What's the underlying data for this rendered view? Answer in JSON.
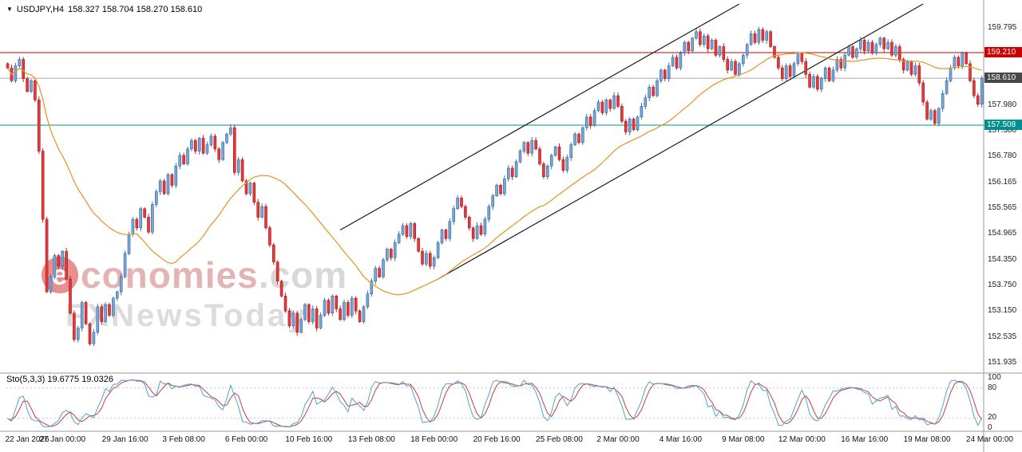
{
  "header": {
    "dropdown_glyph": "▼",
    "symbol_timeframe": "USDJPY,H4",
    "ohlc_values": "158.327 158.704 158.270 158.610"
  },
  "watermark": {
    "logo_letter": "e",
    "brand_rest": "conomies",
    "tld": ".com",
    "tagline": "FXNewsToday"
  },
  "chart_data": {
    "type": "candlestick",
    "symbol": "USDJPY",
    "timeframe": "H4",
    "ohlc_readout": {
      "open": "158.327",
      "high": "158.704",
      "low": "158.270",
      "close": "158.610"
    },
    "ylim": [
      151.75,
      160.35
    ],
    "grid": false,
    "up_color": "#2f6399",
    "up_fill": "#7aa6d8",
    "down_color": "#b31217",
    "down_fill": "#e03c3c",
    "first_open": 158.95,
    "closes": [
      158.85,
      158.55,
      158.9,
      159.05,
      158.6,
      158.3,
      158.55,
      158.1,
      156.9,
      155.3,
      153.6,
      153.95,
      154.45,
      154.2,
      154.55,
      153.9,
      153.1,
      152.48,
      152.75,
      153.35,
      152.85,
      152.38,
      152.65,
      153.25,
      152.9,
      153.3,
      153.05,
      153.45,
      153.6,
      153.95,
      154.5,
      154.95,
      155.3,
      155.1,
      155.55,
      155.35,
      155.0,
      155.65,
      155.95,
      156.2,
      155.9,
      156.35,
      156.1,
      156.55,
      156.8,
      156.6,
      156.95,
      157.15,
      156.9,
      157.2,
      156.85,
      157.05,
      157.25,
      156.95,
      156.7,
      157.1,
      157.3,
      157.45,
      156.4,
      156.7,
      156.2,
      155.9,
      156.15,
      155.7,
      155.35,
      155.6,
      155.1,
      154.7,
      154.3,
      153.85,
      153.5,
      153.15,
      152.8,
      153.1,
      152.65,
      152.95,
      153.3,
      152.9,
      153.2,
      152.75,
      153.05,
      153.4,
      153.1,
      153.5,
      153.2,
      152.95,
      153.35,
      153.05,
      153.45,
      153.15,
      152.9,
      153.25,
      153.55,
      153.85,
      154.15,
      153.95,
      154.35,
      154.6,
      154.4,
      154.75,
      154.95,
      155.15,
      154.9,
      155.2,
      154.85,
      154.55,
      154.25,
      154.5,
      154.2,
      154.4,
      154.75,
      155.05,
      154.85,
      155.25,
      155.55,
      155.8,
      155.6,
      155.35,
      155.1,
      154.85,
      155.15,
      154.95,
      155.3,
      155.6,
      155.85,
      156.1,
      155.9,
      156.25,
      156.5,
      156.3,
      156.65,
      156.9,
      157.1,
      156.85,
      157.15,
      156.95,
      156.6,
      156.3,
      156.55,
      156.8,
      157.0,
      156.7,
      156.45,
      156.75,
      157.05,
      157.3,
      157.1,
      157.45,
      157.7,
      157.5,
      157.85,
      158.05,
      157.8,
      158.1,
      157.9,
      158.2,
      157.95,
      157.6,
      157.35,
      157.65,
      157.4,
      157.7,
      157.95,
      158.15,
      158.4,
      158.2,
      158.55,
      158.8,
      158.6,
      158.9,
      159.1,
      158.85,
      159.2,
      159.45,
      159.25,
      159.55,
      159.7,
      159.4,
      159.6,
      159.3,
      159.5,
      159.15,
      159.35,
      159.05,
      158.8,
      159.0,
      158.7,
      158.95,
      159.15,
      159.4,
      159.65,
      159.45,
      159.75,
      159.5,
      159.7,
      159.35,
      159.1,
      158.85,
      158.6,
      158.9,
      158.65,
      158.95,
      159.2,
      159.0,
      158.7,
      158.4,
      158.65,
      158.35,
      158.6,
      158.85,
      158.55,
      158.8,
      159.05,
      158.85,
      159.15,
      159.35,
      159.1,
      159.3,
      159.5,
      159.25,
      159.45,
      159.2,
      159.4,
      159.55,
      159.3,
      159.45,
      159.15,
      159.35,
      159.05,
      158.8,
      159.0,
      158.7,
      158.9,
      158.5,
      158.05,
      157.65,
      157.85,
      157.55,
      157.9,
      158.25,
      158.55,
      158.85,
      159.1,
      158.9,
      159.2,
      158.95,
      158.55,
      158.2,
      158.0,
      158.61
    ],
    "moving_average": {
      "type": "SMA",
      "period": 34,
      "color": "#e39b2d"
    },
    "horizontal_lines": [
      {
        "price": 159.21,
        "color": "#cc0000",
        "label": "159.210",
        "label_bg": "#cc0000",
        "role": "resistance"
      },
      {
        "price": 158.61,
        "color": "#aaaaaa",
        "label": "158.610",
        "label_bg": "#474747",
        "role": "current-price"
      },
      {
        "price": 157.508,
        "color": "#008f8f",
        "label": "157.508",
        "label_bg": "#009090",
        "role": "support"
      }
    ],
    "trend_channel": [
      {
        "from": {
          "i": 85,
          "price": 155.05
        },
        "to": {
          "i": 187,
          "price": 160.35
        }
      },
      {
        "from": {
          "i": 110,
          "price": 153.9
        },
        "to": {
          "i": 234,
          "price": 160.35
        }
      }
    ],
    "price_axis_ticks": [
      {
        "label": "159.795",
        "price": 159.795
      },
      {
        "label": "157.980",
        "price": 157.98
      },
      {
        "label": "157.380",
        "price": 157.38
      },
      {
        "label": "156.780",
        "price": 156.78
      },
      {
        "label": "156.165",
        "price": 156.165
      },
      {
        "label": "155.565",
        "price": 155.565
      },
      {
        "label": "154.965",
        "price": 154.965
      },
      {
        "label": "154.350",
        "price": 154.35
      },
      {
        "label": "153.750",
        "price": 153.75
      },
      {
        "label": "153.150",
        "price": 153.15
      },
      {
        "label": "152.535",
        "price": 152.535
      },
      {
        "label": "151.935",
        "price": 151.935
      }
    ],
    "time_axis": [
      {
        "label": "22 Jan 2026",
        "i": 5
      },
      {
        "label": "27 Jan 00:00",
        "i": 14
      },
      {
        "label": "29 Jan 16:00",
        "i": 30
      },
      {
        "label": "3 Feb 08:00",
        "i": 45
      },
      {
        "label": "6 Feb 00:00",
        "i": 61
      },
      {
        "label": "10 Feb 16:00",
        "i": 77
      },
      {
        "label": "13 Feb 08:00",
        "i": 93
      },
      {
        "label": "18 Feb 00:00",
        "i": 109
      },
      {
        "label": "20 Feb 16:00",
        "i": 125
      },
      {
        "label": "25 Feb 08:00",
        "i": 141
      },
      {
        "label": "2 Mar 00:00",
        "i": 156
      },
      {
        "label": "4 Mar 16:00",
        "i": 172
      },
      {
        "label": "9 Mar 08:00",
        "i": 188
      },
      {
        "label": "12 Mar 00:00",
        "i": 203
      },
      {
        "label": "16 Mar 16:00",
        "i": 219
      },
      {
        "label": "19 Mar 08:00",
        "i": 235
      },
      {
        "label": "24 Mar 00:00",
        "i": 251
      }
    ],
    "indicator": {
      "name": "Sto(5,3,3)",
      "values_text": "19.6775 19.0326",
      "main_value": 19.6775,
      "signal_value": 19.0326,
      "main_color": "#53a2cc",
      "signal_color": "#c43d4b",
      "range": [
        0,
        100
      ],
      "levels": [
        {
          "v": 100,
          "label": "100"
        },
        {
          "v": 80,
          "label": "80"
        },
        {
          "v": 20,
          "label": "20"
        },
        {
          "v": 0,
          "label": "0"
        }
      ]
    }
  }
}
